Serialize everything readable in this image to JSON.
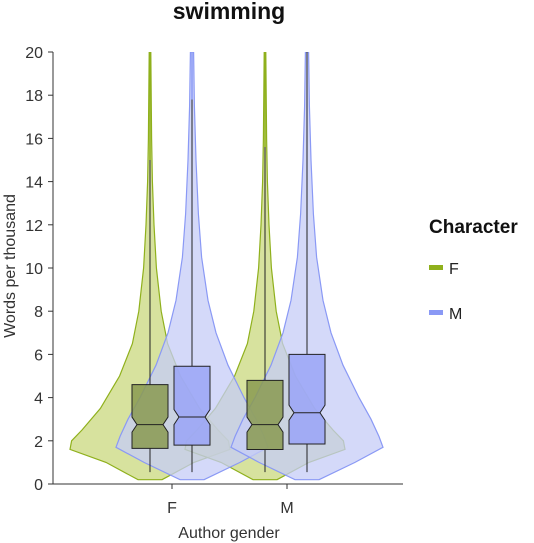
{
  "chart_data": {
    "type": "violin",
    "title": "swimming",
    "xlabel": "Author gender",
    "ylabel": "Words per thousand",
    "ylim": [
      0,
      20
    ],
    "yticks": [
      0,
      2,
      4,
      6,
      8,
      10,
      12,
      14,
      16,
      18,
      20
    ],
    "categories": [
      "F",
      "M"
    ],
    "grid": false,
    "legend": {
      "title": "Character",
      "placement": "right",
      "entries": [
        {
          "label": "F",
          "color": "#8fb01c"
        },
        {
          "label": "M",
          "color": "#8a99f5"
        }
      ]
    },
    "series": [
      {
        "name": "F",
        "color": "#8fb01c",
        "fill": "#c9d87e",
        "boxes": [
          {
            "category": "F",
            "q1": 1.65,
            "median": 2.75,
            "q3": 4.6,
            "whisker_low": 0.55,
            "whisker_high": 15.0,
            "max": 20
          },
          {
            "category": "M",
            "q1": 1.6,
            "median": 2.75,
            "q3": 4.8,
            "whisker_low": 0.55,
            "whisker_high": 15.6,
            "max": 20
          }
        ],
        "density": [
          [
            0.2,
            0.15
          ],
          [
            1.0,
            0.55
          ],
          [
            1.6,
            1.0
          ],
          [
            2.0,
            0.98
          ],
          [
            2.5,
            0.85
          ],
          [
            3.5,
            0.62
          ],
          [
            5.0,
            0.38
          ],
          [
            6.5,
            0.22
          ],
          [
            8.0,
            0.14
          ],
          [
            10.0,
            0.08
          ],
          [
            12.0,
            0.05
          ],
          [
            14.0,
            0.03
          ],
          [
            16.0,
            0.02
          ],
          [
            20.0,
            0.01
          ]
        ]
      },
      {
        "name": "M",
        "color": "#8a99f5",
        "fill": "#c5ccf7",
        "boxes": [
          {
            "category": "F",
            "q1": 1.8,
            "median": 3.1,
            "q3": 5.45,
            "whisker_low": 0.55,
            "whisker_high": 17.8,
            "max": 20
          },
          {
            "category": "M",
            "q1": 1.85,
            "median": 3.3,
            "q3": 6.0,
            "whisker_low": 0.55,
            "whisker_high": 20.0,
            "max": 20
          }
        ],
        "density": [
          [
            0.2,
            0.15
          ],
          [
            1.0,
            0.6
          ],
          [
            1.7,
            0.95
          ],
          [
            2.2,
            0.9
          ],
          [
            3.0,
            0.8
          ],
          [
            4.0,
            0.65
          ],
          [
            5.5,
            0.45
          ],
          [
            7.0,
            0.3
          ],
          [
            8.5,
            0.2
          ],
          [
            10.5,
            0.12
          ],
          [
            12.5,
            0.08
          ],
          [
            15.0,
            0.05
          ],
          [
            17.5,
            0.03
          ],
          [
            20.0,
            0.02
          ]
        ]
      }
    ]
  }
}
